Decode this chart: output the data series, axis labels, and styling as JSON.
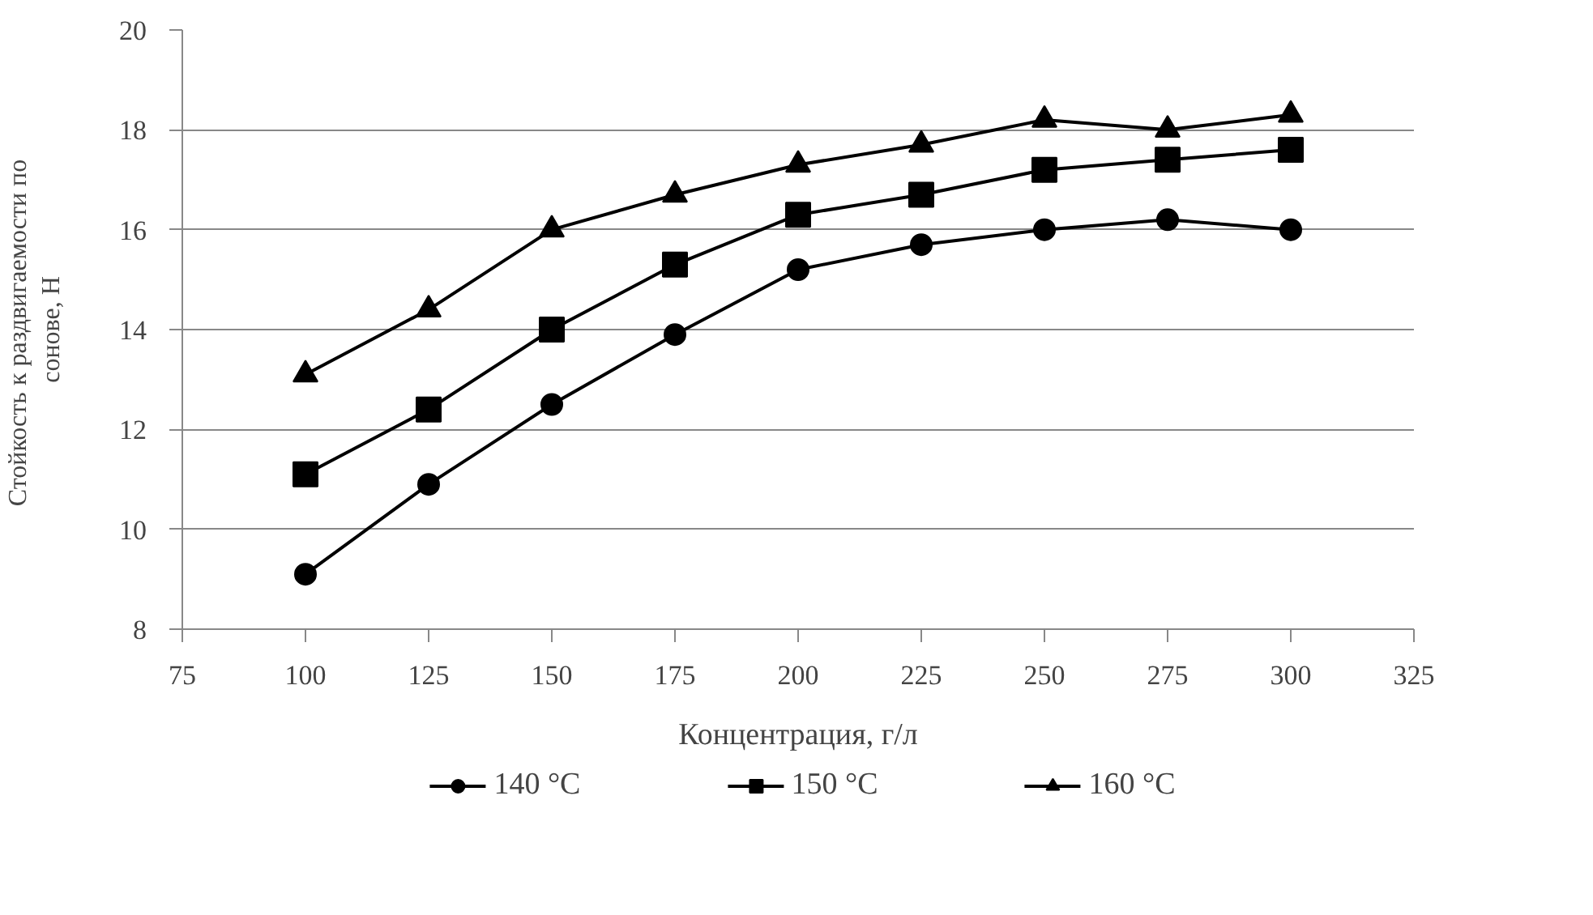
{
  "chart_data": {
    "type": "line",
    "xlabel": "Концентрация, г/л",
    "ylabel": "Стойкость к раздвигаемости  по\nсонове, Н",
    "x": [
      100,
      125,
      150,
      175,
      200,
      225,
      250,
      275,
      300
    ],
    "series": [
      {
        "name": "140 °C",
        "color": "#000000",
        "marker": "circle",
        "values": [
          9.1,
          10.9,
          12.5,
          13.9,
          15.2,
          15.7,
          16.0,
          16.2,
          16.0
        ]
      },
      {
        "name": "150 °C",
        "color": "#000000",
        "marker": "square",
        "values": [
          11.1,
          12.4,
          14.0,
          15.3,
          16.3,
          16.7,
          17.2,
          17.4,
          17.6
        ]
      },
      {
        "name": "160 °C",
        "color": "#000000",
        "marker": "triangle",
        "values": [
          13.1,
          14.4,
          16.0,
          16.7,
          17.3,
          17.7,
          18.2,
          18.0,
          18.3
        ]
      }
    ],
    "xlim": [
      75,
      325
    ],
    "xticks": [
      75,
      100,
      125,
      150,
      175,
      200,
      225,
      250,
      275,
      300,
      325
    ],
    "ylim": [
      8,
      20
    ],
    "yticks": [
      8,
      10,
      12,
      14,
      16,
      18,
      20
    ],
    "grid": "y",
    "legend": "bottom",
    "line_style": "solid"
  }
}
